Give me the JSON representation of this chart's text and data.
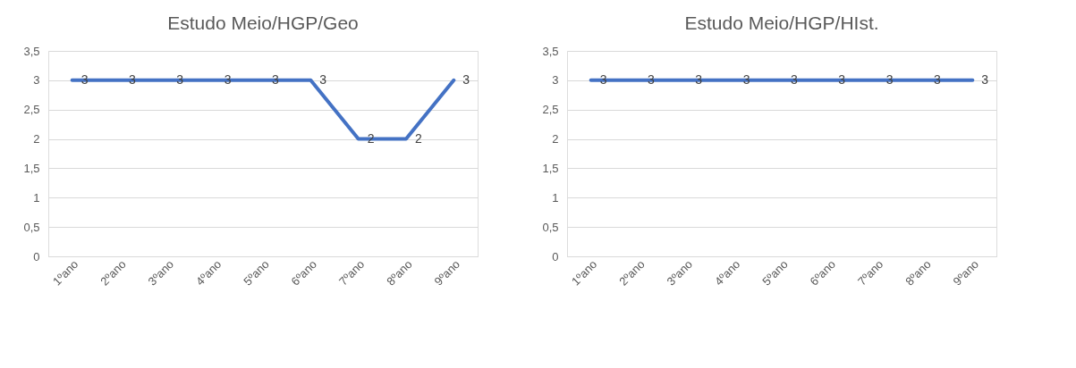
{
  "chart_data": [
    {
      "type": "line",
      "title": "Estudo Meio/HGP/Geo",
      "categories": [
        "1ºano",
        "2ºano",
        "3ºano",
        "4ºano",
        "5ºano",
        "6ºano",
        "7ºano",
        "8ºano",
        "9ºano"
      ],
      "series": [
        {
          "color": "#4472c4",
          "values": [
            3,
            3,
            3,
            3,
            3,
            3,
            2,
            2,
            3
          ]
        }
      ],
      "ylim": [
        0,
        3.5
      ],
      "yticks": [
        0,
        {
          "value": 0.5,
          "label": "0,5"
        },
        1,
        {
          "value": 1.5,
          "label": "1,5"
        },
        2,
        {
          "value": 2.5,
          "label": "2,5"
        },
        3,
        {
          "value": 3.5,
          "label": "3,5"
        }
      ],
      "grid": "y",
      "data_labels": true
    },
    {
      "type": "line",
      "title": "Estudo Meio/HGP/HIst.",
      "categories": [
        "1ºano",
        "2ºano",
        "3ºano",
        "4ºano",
        "5ºano",
        "6ºano",
        "7ºano",
        "8ºano",
        "9ºano"
      ],
      "series": [
        {
          "color": "#4472c4",
          "values": [
            3,
            3,
            3,
            3,
            3,
            3,
            3,
            3,
            3
          ]
        }
      ],
      "ylim": [
        0,
        3.5
      ],
      "yticks": [
        0,
        {
          "value": 0.5,
          "label": "0,5"
        },
        1,
        {
          "value": 1.5,
          "label": "1,5"
        },
        2,
        {
          "value": 2.5,
          "label": "2,5"
        },
        3,
        {
          "value": 3.5,
          "label": "3,5"
        }
      ],
      "grid": "y",
      "data_labels": true
    }
  ]
}
